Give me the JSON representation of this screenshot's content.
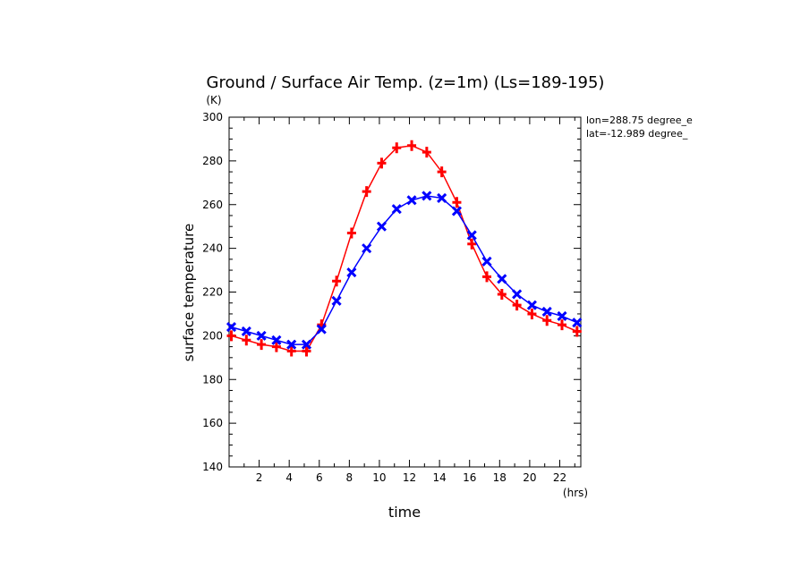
{
  "chart_data": {
    "type": "line",
    "title": "Ground / Surface Air Temp. (z=1m) (Ls=189-195)",
    "xlabel": "time",
    "ylabel": "surface temperature",
    "x_unit": "(hrs)",
    "y_unit": "(K)",
    "xlim": [
      0,
      23.4
    ],
    "ylim": [
      140,
      300
    ],
    "x_ticks": [
      2,
      4,
      6,
      8,
      10,
      12,
      14,
      16,
      18,
      20,
      22
    ],
    "y_ticks": [
      140,
      160,
      180,
      200,
      220,
      240,
      260,
      280,
      300
    ],
    "annotations": [
      "lon=288.75 degree_e",
      "lat=-12.989 degree_"
    ],
    "x": [
      0.15,
      1.15,
      2.15,
      3.15,
      4.15,
      5.15,
      6.15,
      7.15,
      8.15,
      9.15,
      10.15,
      11.15,
      12.15,
      13.15,
      14.15,
      15.15,
      16.15,
      17.15,
      18.15,
      19.15,
      20.15,
      21.15,
      22.15,
      23.15
    ],
    "series": [
      {
        "color": "#ff0000",
        "marker": "plus",
        "values": [
          200,
          198,
          196,
          195,
          193,
          193,
          205,
          225,
          247,
          266,
          279,
          286,
          287,
          284,
          275,
          261,
          242,
          227,
          219,
          214,
          210,
          207,
          205,
          202
        ]
      },
      {
        "color": "#0000ff",
        "marker": "x",
        "values": [
          204,
          202,
          200,
          198,
          196,
          196,
          203,
          216,
          229,
          240,
          250,
          258,
          262,
          264,
          263,
          257,
          246,
          234,
          226,
          219,
          214,
          211,
          209,
          206
        ]
      }
    ]
  }
}
